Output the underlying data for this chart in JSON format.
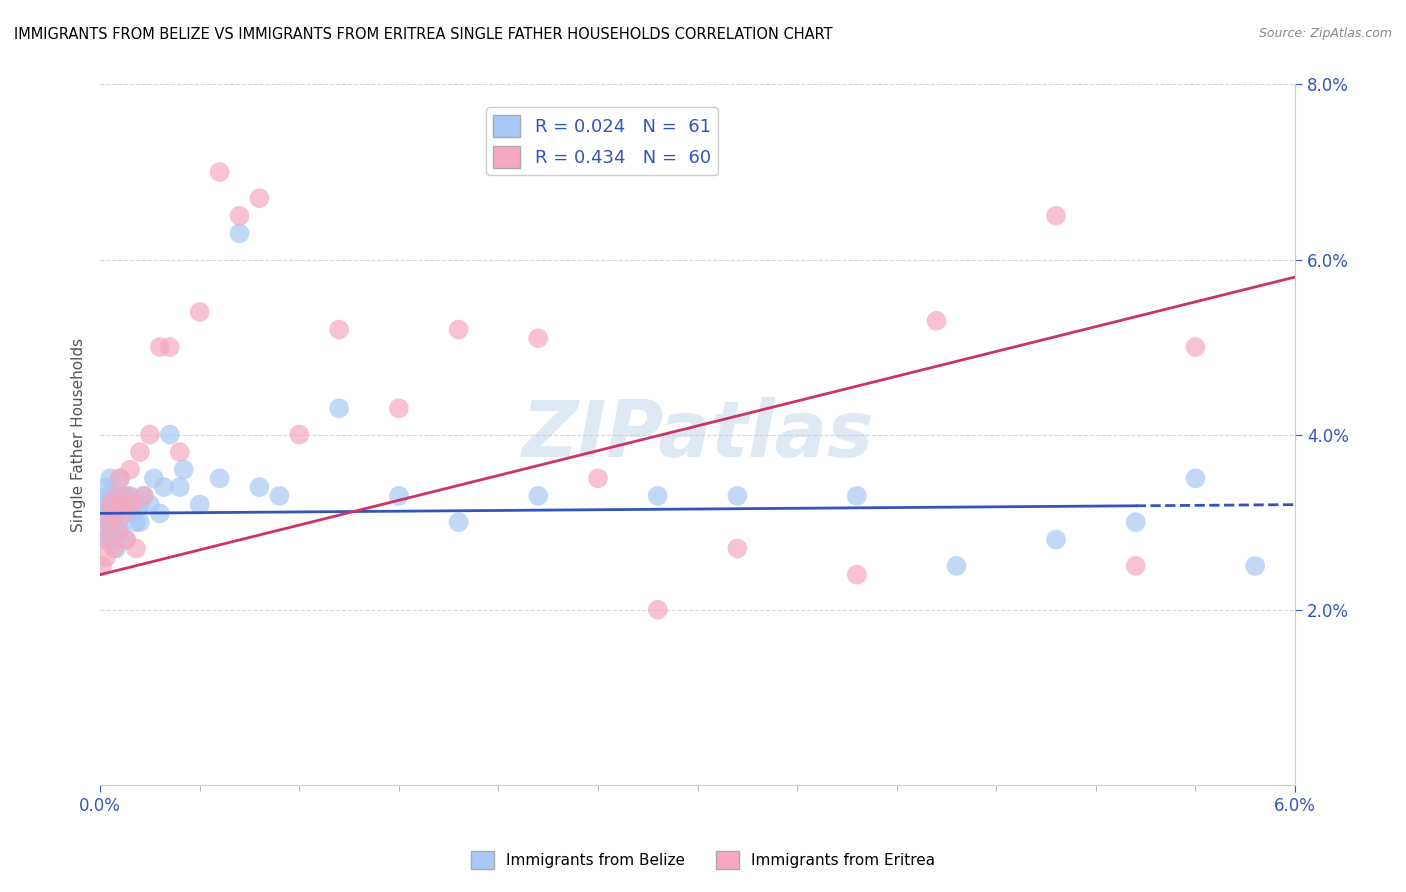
{
  "title": "IMMIGRANTS FROM BELIZE VS IMMIGRANTS FROM ERITREA SINGLE FATHER HOUSEHOLDS CORRELATION CHART",
  "source": "Source: ZipAtlas.com",
  "ylabel_label": "Single Father Households",
  "legend_belize": "R = 0.024   N =  61",
  "legend_eritrea": "R = 0.434   N =  60",
  "belize_color": "#a8c8f5",
  "eritrea_color": "#f5a8c0",
  "belize_line_color": "#3355bb",
  "eritrea_line_color": "#cc3366",
  "watermark": "ZIPatlas",
  "xlim": [
    0.0,
    0.06
  ],
  "ylim": [
    0.0,
    0.08
  ],
  "belize_scatter_x": [
    0.0001,
    0.0002,
    0.0002,
    0.0003,
    0.0003,
    0.0004,
    0.0004,
    0.0005,
    0.0005,
    0.0006,
    0.0006,
    0.0007,
    0.0008,
    0.0008,
    0.0009,
    0.001,
    0.001,
    0.0011,
    0.0012,
    0.0013,
    0.0014,
    0.0015,
    0.0016,
    0.0018,
    0.002,
    0.002,
    0.0022,
    0.0025,
    0.0027,
    0.003,
    0.0032,
    0.0035,
    0.004,
    0.0042,
    0.005,
    0.006,
    0.007,
    0.008,
    0.009,
    0.012,
    0.015,
    0.018,
    0.022,
    0.028,
    0.032,
    0.038,
    0.043,
    0.048,
    0.052,
    0.055,
    0.058
  ],
  "belize_scatter_y": [
    0.031,
    0.032,
    0.029,
    0.034,
    0.028,
    0.03,
    0.033,
    0.031,
    0.035,
    0.028,
    0.032,
    0.033,
    0.027,
    0.031,
    0.03,
    0.035,
    0.029,
    0.032,
    0.033,
    0.028,
    0.032,
    0.033,
    0.031,
    0.03,
    0.03,
    0.032,
    0.033,
    0.032,
    0.035,
    0.031,
    0.034,
    0.04,
    0.034,
    0.036,
    0.032,
    0.035,
    0.063,
    0.034,
    0.033,
    0.043,
    0.033,
    0.03,
    0.033,
    0.033,
    0.033,
    0.033,
    0.025,
    0.028,
    0.03,
    0.035,
    0.025
  ],
  "eritrea_scatter_x": [
    0.0001,
    0.0002,
    0.0003,
    0.0004,
    0.0005,
    0.0006,
    0.0007,
    0.0008,
    0.0009,
    0.001,
    0.0011,
    0.0012,
    0.0013,
    0.0014,
    0.0015,
    0.0016,
    0.0018,
    0.002,
    0.0022,
    0.0025,
    0.003,
    0.0035,
    0.004,
    0.005,
    0.006,
    0.007,
    0.008,
    0.01,
    0.012,
    0.015,
    0.018,
    0.022,
    0.025,
    0.028,
    0.032,
    0.038,
    0.042,
    0.048,
    0.052,
    0.055
  ],
  "eritrea_scatter_y": [
    0.025,
    0.028,
    0.026,
    0.03,
    0.032,
    0.031,
    0.027,
    0.033,
    0.029,
    0.035,
    0.032,
    0.031,
    0.028,
    0.033,
    0.036,
    0.032,
    0.027,
    0.038,
    0.033,
    0.04,
    0.05,
    0.05,
    0.038,
    0.054,
    0.07,
    0.065,
    0.067,
    0.04,
    0.052,
    0.043,
    0.052,
    0.051,
    0.035,
    0.02,
    0.027,
    0.024,
    0.053,
    0.065,
    0.025,
    0.05
  ],
  "belize_trend_x": [
    0.0,
    0.06
  ],
  "belize_trend_y": [
    0.031,
    0.032
  ],
  "eritrea_trend_x": [
    0.0,
    0.06
  ],
  "eritrea_trend_y": [
    0.024,
    0.058
  ]
}
